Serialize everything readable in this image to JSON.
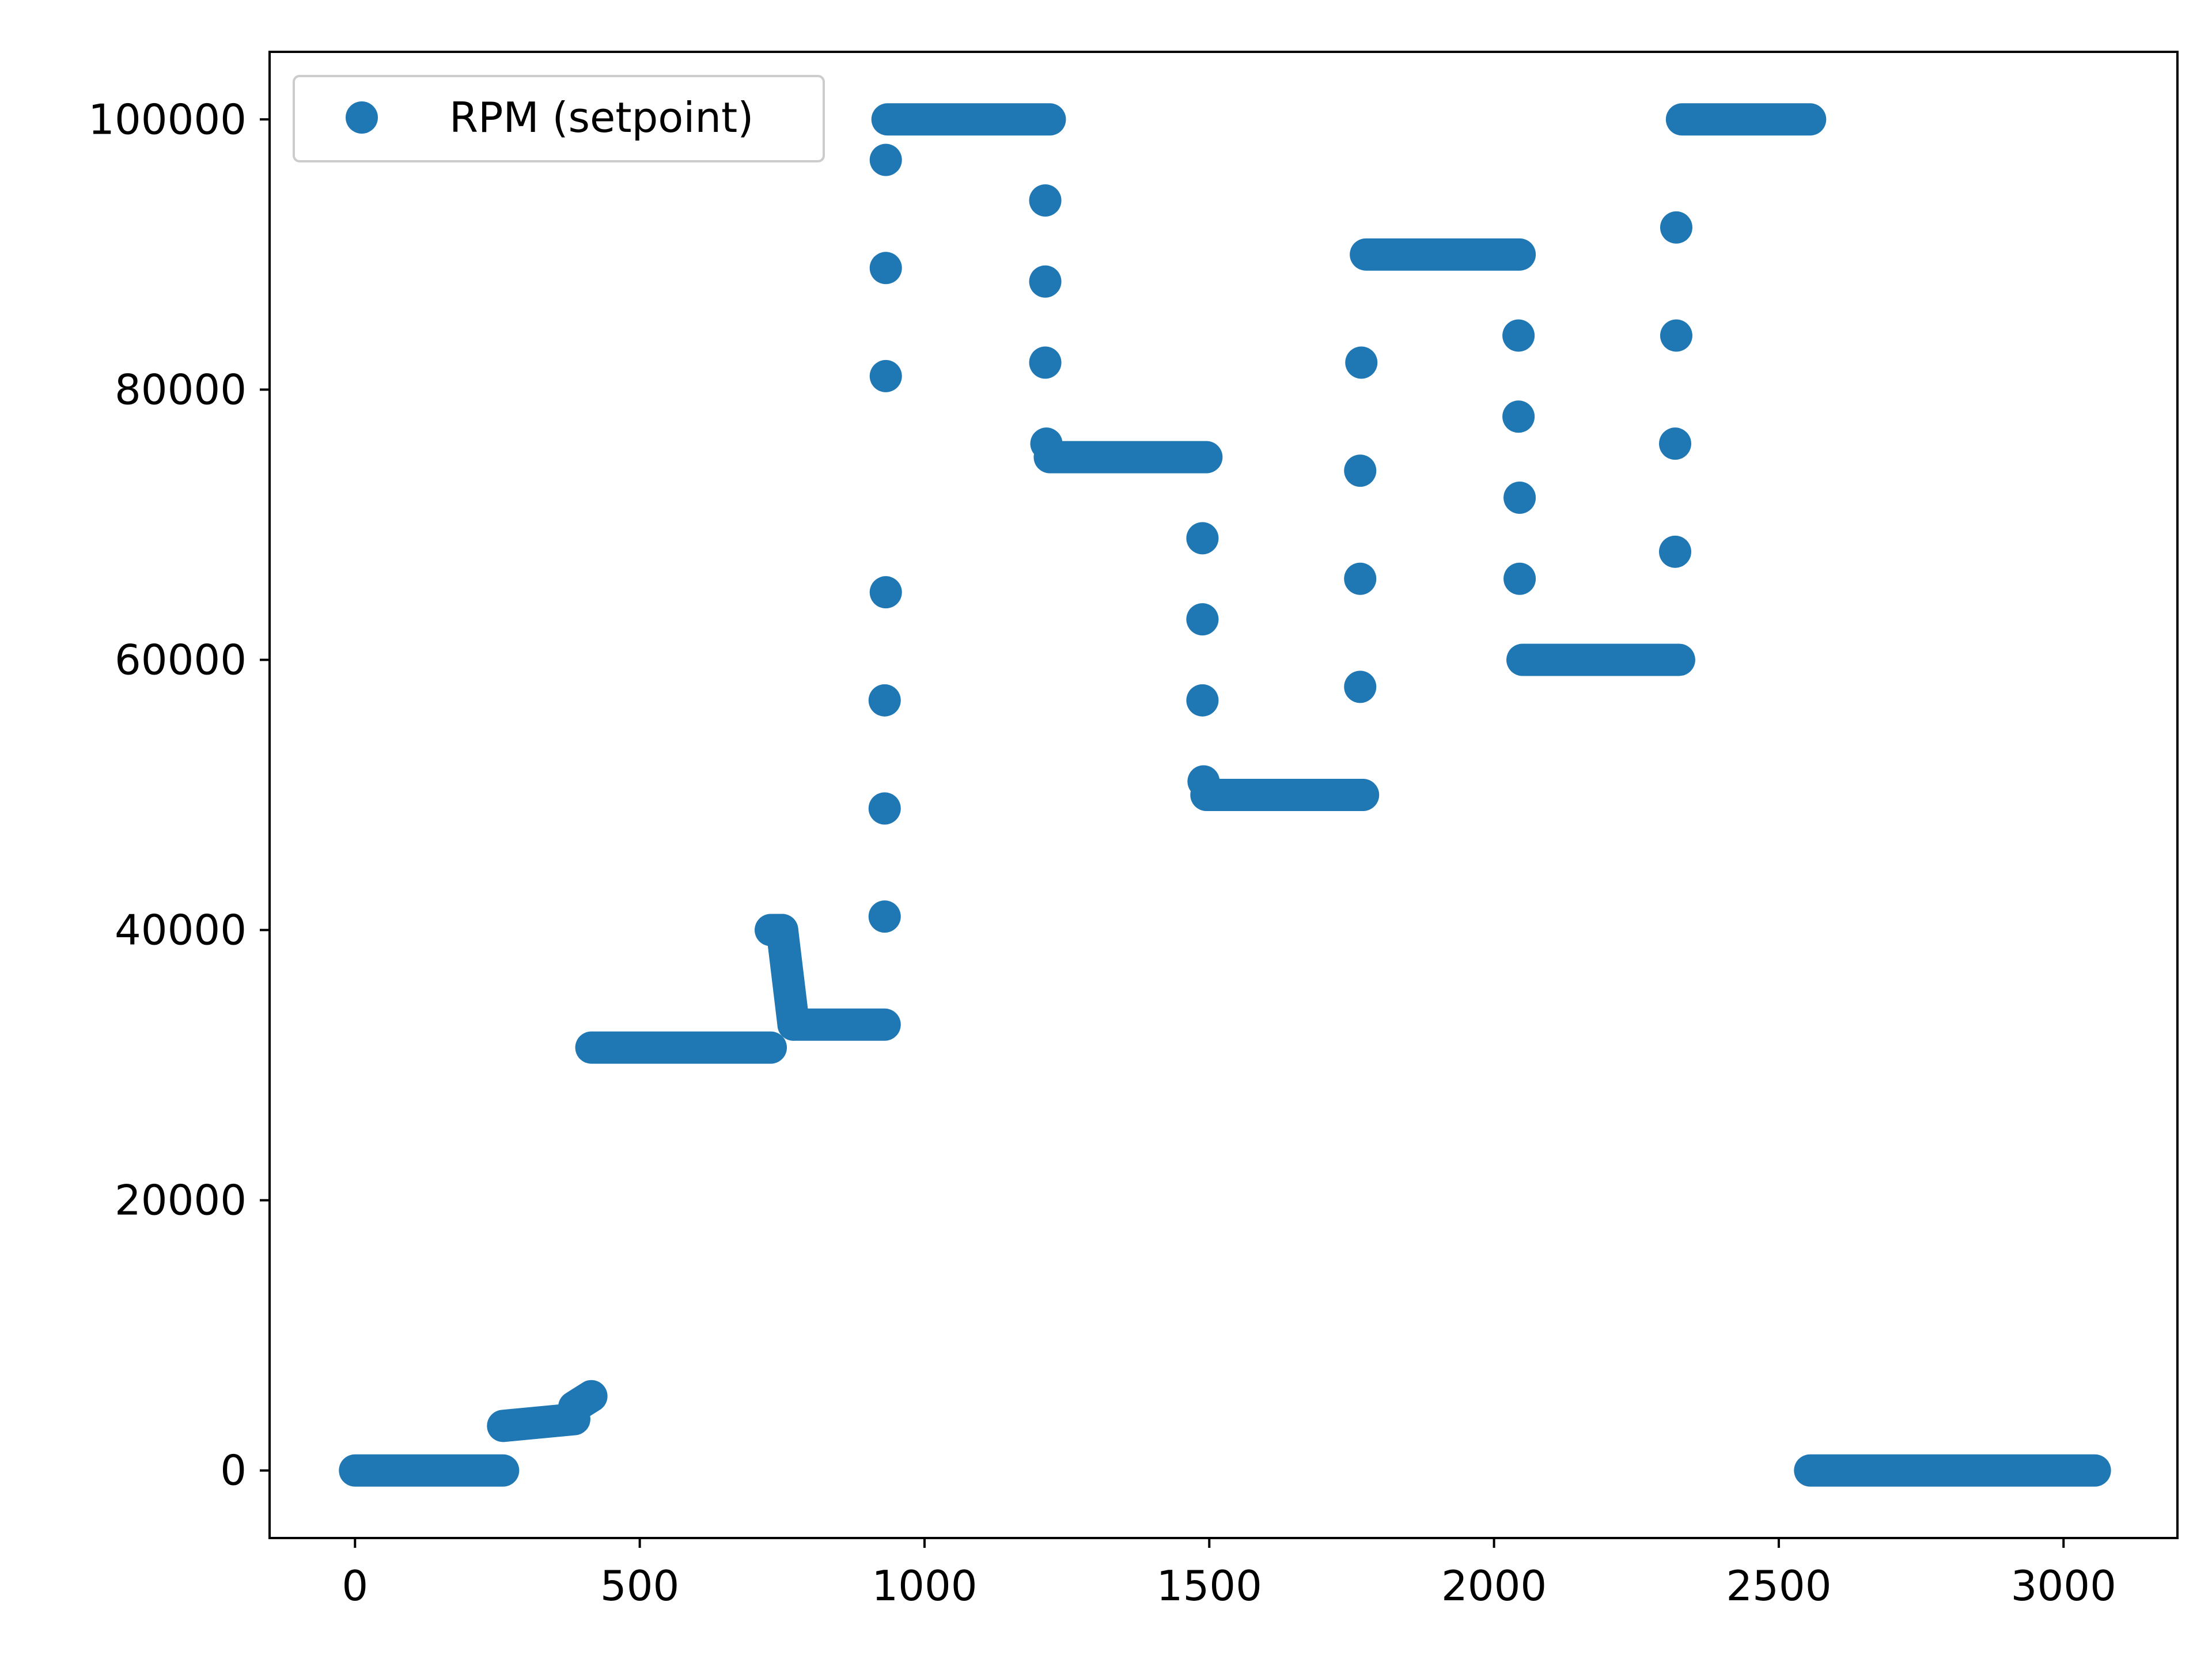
{
  "chart_data": {
    "type": "scatter",
    "title": "",
    "xlabel": "",
    "ylabel": "",
    "xlim": [
      -150,
      3200
    ],
    "ylim": [
      -5000,
      105000
    ],
    "xticks": [
      0,
      500,
      1000,
      1500,
      2000,
      2500,
      3000
    ],
    "yticks": [
      0,
      20000,
      40000,
      60000,
      80000,
      100000
    ],
    "xtick_labels": [
      "0",
      "500",
      "1000",
      "1500",
      "2000",
      "2500",
      "3000"
    ],
    "ytick_labels": [
      "0",
      "20000",
      "40000",
      "60000",
      "80000",
      "100000"
    ],
    "grid": false,
    "legend": {
      "placement": "upper-left",
      "entries": [
        "RPM (setpoint)"
      ]
    },
    "series": [
      {
        "name": "RPM (setpoint)",
        "color": "#1f77b4",
        "marker": "circle",
        "segments": [
          {
            "x_start": 0,
            "x_end": 260,
            "y_start": 0,
            "y_end": 0
          },
          {
            "x_start": 260,
            "x_end": 385,
            "y_start": 3300,
            "y_end": 3800
          },
          {
            "x_start": 385,
            "x_end": 415,
            "y_start": 4700,
            "y_end": 5500
          },
          {
            "x_start": 415,
            "x_end": 730,
            "y_start": 31300,
            "y_end": 31300
          },
          {
            "x_start": 730,
            "x_end": 750,
            "y_start": 40000,
            "y_end": 40000
          },
          {
            "x_start": 750,
            "x_end": 770,
            "y_start": 40000,
            "y_end": 33000
          },
          {
            "x_start": 770,
            "x_end": 930,
            "y_start": 33000,
            "y_end": 33000
          },
          {
            "x_start": 935,
            "x_end": 1220,
            "y_start": 100000,
            "y_end": 100000
          },
          {
            "x_start": 1220,
            "x_end": 1495,
            "y_start": 75000,
            "y_end": 75000
          },
          {
            "x_start": 1495,
            "x_end": 1770,
            "y_start": 50000,
            "y_end": 50000
          },
          {
            "x_start": 1775,
            "x_end": 2045,
            "y_start": 90000,
            "y_end": 90000
          },
          {
            "x_start": 2050,
            "x_end": 2325,
            "y_start": 60000,
            "y_end": 60000
          },
          {
            "x_start": 2330,
            "x_end": 2555,
            "y_start": 100000,
            "y_end": 100000
          },
          {
            "x_start": 2555,
            "x_end": 3055,
            "y_start": 0,
            "y_end": 0
          }
        ],
        "points": [
          {
            "x": 930,
            "y": 41000
          },
          {
            "x": 930,
            "y": 49000
          },
          {
            "x": 930,
            "y": 57000
          },
          {
            "x": 932,
            "y": 65000
          },
          {
            "x": 932,
            "y": 81000
          },
          {
            "x": 932,
            "y": 89000
          },
          {
            "x": 932,
            "y": 97000
          },
          {
            "x": 1212,
            "y": 94000
          },
          {
            "x": 1212,
            "y": 88000
          },
          {
            "x": 1212,
            "y": 82000
          },
          {
            "x": 1214,
            "y": 76000
          },
          {
            "x": 1488,
            "y": 69000
          },
          {
            "x": 1488,
            "y": 63000
          },
          {
            "x": 1488,
            "y": 57000
          },
          {
            "x": 1490,
            "y": 51000
          },
          {
            "x": 1765,
            "y": 58000
          },
          {
            "x": 1765,
            "y": 66000
          },
          {
            "x": 1765,
            "y": 74000
          },
          {
            "x": 1767,
            "y": 82000
          },
          {
            "x": 2043,
            "y": 84000
          },
          {
            "x": 2043,
            "y": 78000
          },
          {
            "x": 2045,
            "y": 72000
          },
          {
            "x": 2045,
            "y": 66000
          },
          {
            "x": 2318,
            "y": 68000
          },
          {
            "x": 2318,
            "y": 76000
          },
          {
            "x": 2320,
            "y": 84000
          },
          {
            "x": 2320,
            "y": 92000
          }
        ]
      }
    ]
  }
}
